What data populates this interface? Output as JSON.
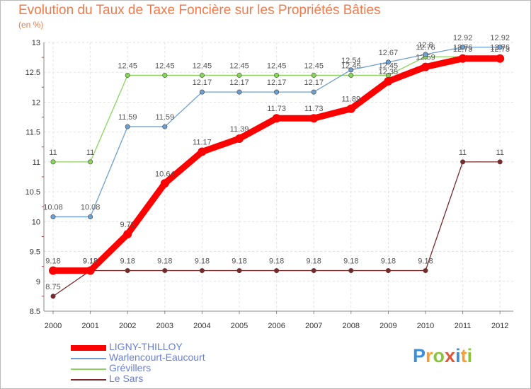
{
  "chart_data": {
    "type": "line",
    "title": "Evolution du Taux de Taxe Foncière sur les Propriétés Bâties",
    "ylabel": "(en %)",
    "x": [
      "2000",
      "2001",
      "2002",
      "2003",
      "2004",
      "2005",
      "2006",
      "2007",
      "2008",
      "2009",
      "2010",
      "2011",
      "2012"
    ],
    "yticks": [
      "8.5",
      "9",
      "9.5",
      "10",
      "10.5",
      "11",
      "11.5",
      "12",
      "12.5",
      "13"
    ],
    "ylim": [
      8.5,
      13
    ],
    "series": [
      {
        "name": "Le Sars",
        "color": "#7a2a2a",
        "values": [
          8.75,
          9.18,
          9.18,
          9.18,
          9.18,
          9.18,
          9.18,
          9.18,
          9.18,
          9.18,
          9.18,
          11,
          11
        ],
        "labels": [
          "8.75",
          "9.18",
          "9.18",
          "9.18",
          "9.18",
          "9.18",
          "9.18",
          "9.18",
          "9.18",
          "9.18",
          "9.18",
          "11",
          "11"
        ]
      },
      {
        "name": "Grévillers",
        "color": "#8ad45c",
        "values": [
          11,
          11,
          12.45,
          12.45,
          12.45,
          12.45,
          12.45,
          12.45,
          12.45,
          12.45,
          12.76,
          12.76,
          12.76
        ],
        "labels": [
          "11",
          "11",
          "12.45",
          "12.45",
          "12.45",
          "12.45",
          "12.45",
          "12.45",
          "12.45",
          "12.45",
          "12.76",
          "12.76",
          "12.76"
        ]
      },
      {
        "name": "Warlencourt-Eaucourt",
        "color": "#6f9fd0",
        "values": [
          10.08,
          10.08,
          11.59,
          11.59,
          12.17,
          12.17,
          12.17,
          12.17,
          12.54,
          12.67,
          12.8,
          12.92,
          12.92
        ],
        "labels": [
          "10.08",
          "10.08",
          "11.59",
          "11.59",
          "12.17",
          "12.17",
          "12.17",
          "12.17",
          "12.54",
          "12.67",
          "12.8",
          "12.92",
          "12.92"
        ]
      },
      {
        "name": "LIGNY-THILLOY",
        "color": "#ff0000",
        "values": [
          9.18,
          9.18,
          9.79,
          10.64,
          11.17,
          11.39,
          11.73,
          11.73,
          11.89,
          12.35,
          12.59,
          12.73,
          12.73
        ],
        "labels": [
          "9.18",
          "9.18",
          "9.79",
          "10.64",
          "11.17",
          "11.39",
          "11.73",
          "11.73",
          "11.89",
          "12.35",
          "12.59",
          "12.73",
          "12.73"
        ]
      }
    ],
    "legend": [
      {
        "name": "LIGNY-THILLOY",
        "color": "#ff0000"
      },
      {
        "name": "Warlencourt-Eaucourt",
        "color": "#6f9fd0"
      },
      {
        "name": "Grévillers",
        "color": "#8ad45c"
      },
      {
        "name": "Le Sars",
        "color": "#7a2a2a"
      }
    ],
    "grid": true,
    "legend_position": "bottom-left"
  },
  "logo": {
    "letters": [
      "P",
      "r",
      "o",
      "x",
      "i",
      "t",
      "i"
    ],
    "colors": [
      "#3a8fd8",
      "#f2a03a",
      "#8ac43c",
      "#e0563a",
      "#3a8fd8",
      "#f2a03a",
      "#8ac43c"
    ]
  }
}
